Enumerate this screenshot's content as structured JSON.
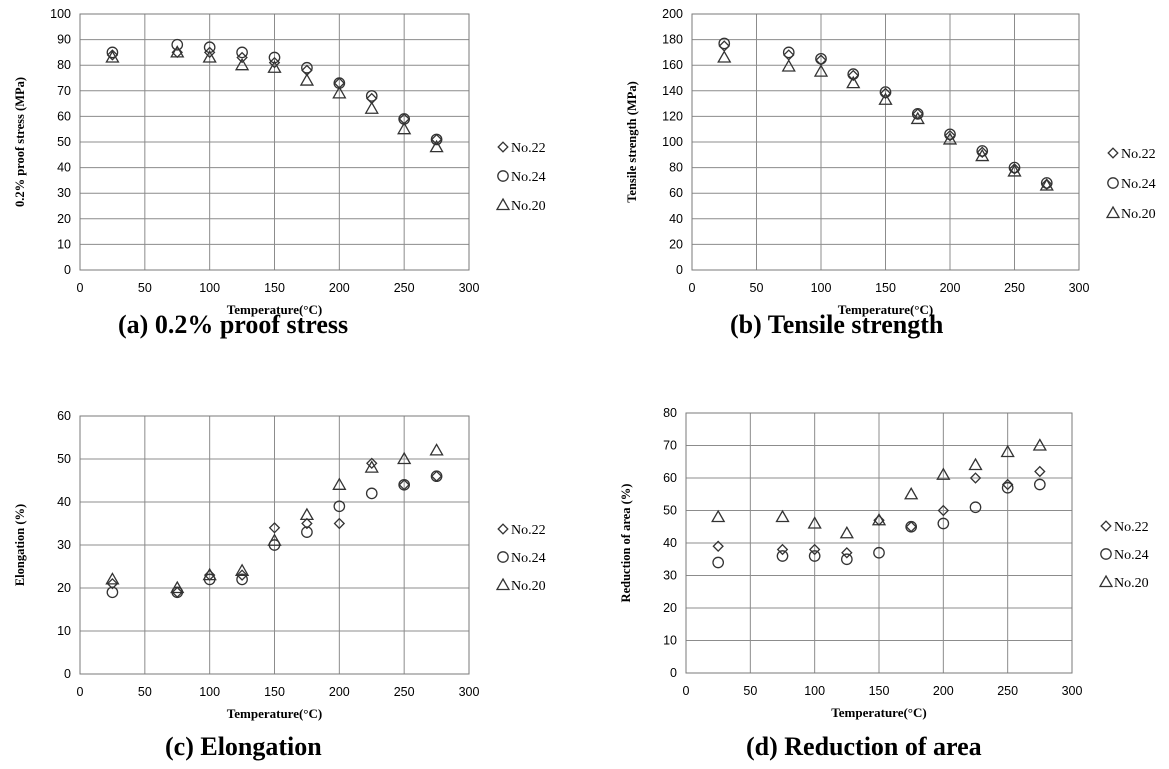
{
  "figure": {
    "captions": [
      "(a) 0.2% proof stress",
      "(b) Tensile strength",
      "(c) Elongation",
      "(d) Reduction of area"
    ]
  },
  "chart_data": [
    {
      "type": "scatter",
      "title": "",
      "xlabel": "Temperature(°C)",
      "ylabel": "0.2% proof stress  (MPa)",
      "xlim": [
        0,
        300
      ],
      "ylim": [
        0,
        100
      ],
      "xticks": [
        0,
        50,
        100,
        150,
        200,
        250,
        300
      ],
      "yticks": [
        0,
        10,
        20,
        30,
        40,
        50,
        60,
        70,
        80,
        90,
        100
      ],
      "grid": true,
      "legend_position": "right",
      "x": [
        25,
        75,
        100,
        125,
        150,
        175,
        200,
        225,
        250,
        275
      ],
      "series": [
        {
          "name": "No.22",
          "marker": "diamond",
          "values": [
            84,
            85,
            85,
            83,
            81,
            78,
            73,
            67,
            59,
            51
          ]
        },
        {
          "name": "No.24",
          "marker": "circle",
          "values": [
            85,
            88,
            87,
            85,
            83,
            79,
            73,
            68,
            59,
            51
          ]
        },
        {
          "name": "No.20",
          "marker": "triangle",
          "values": [
            83,
            85,
            83,
            80,
            79,
            74,
            69,
            63,
            55,
            48
          ]
        }
      ]
    },
    {
      "type": "scatter",
      "title": "",
      "xlabel": "Temperature(°C)",
      "ylabel": "Tensile strength (MPa)",
      "xlim": [
        0,
        300
      ],
      "ylim": [
        0,
        200
      ],
      "xticks": [
        0,
        50,
        100,
        150,
        200,
        250,
        300
      ],
      "yticks": [
        0,
        20,
        40,
        60,
        80,
        100,
        120,
        140,
        160,
        180,
        200
      ],
      "grid": true,
      "legend_position": "right",
      "x": [
        25,
        75,
        100,
        125,
        150,
        175,
        200,
        225,
        250,
        275
      ],
      "series": [
        {
          "name": "No.22",
          "marker": "diamond",
          "values": [
            175,
            168,
            164,
            152,
            138,
            122,
            105,
            92,
            79,
            67
          ]
        },
        {
          "name": "No.24",
          "marker": "circle",
          "values": [
            177,
            170,
            165,
            153,
            139,
            122,
            106,
            93,
            80,
            68
          ]
        },
        {
          "name": "No.20",
          "marker": "triangle",
          "values": [
            166,
            159,
            155,
            146,
            133,
            118,
            102,
            89,
            77,
            66
          ]
        }
      ]
    },
    {
      "type": "scatter",
      "title": "",
      "xlabel": "Temperature(°C)",
      "ylabel": "Elongation (%)",
      "xlim": [
        0,
        300
      ],
      "ylim": [
        0,
        60
      ],
      "xticks": [
        0,
        50,
        100,
        150,
        200,
        250,
        300
      ],
      "yticks": [
        0,
        10,
        20,
        30,
        40,
        50,
        60
      ],
      "grid": true,
      "legend_position": "right",
      "x": [
        25,
        75,
        100,
        125,
        150,
        175,
        200,
        225,
        250,
        275
      ],
      "series": [
        {
          "name": "No.22",
          "marker": "diamond",
          "values": [
            21,
            19,
            23,
            23,
            34,
            35,
            35,
            49,
            44,
            46
          ]
        },
        {
          "name": "No.24",
          "marker": "circle",
          "values": [
            19,
            19,
            22,
            22,
            30,
            33,
            39,
            42,
            44,
            46
          ]
        },
        {
          "name": "No.20",
          "marker": "triangle",
          "values": [
            22,
            20,
            23,
            24,
            31,
            37,
            44,
            48,
            50,
            52
          ]
        }
      ]
    },
    {
      "type": "scatter",
      "title": "",
      "xlabel": "Temperature(°C)",
      "ylabel": "Reduction of area (%)",
      "xlim": [
        0,
        300
      ],
      "ylim": [
        0,
        80
      ],
      "xticks": [
        0,
        50,
        100,
        150,
        200,
        250,
        300
      ],
      "yticks": [
        0,
        10,
        20,
        30,
        40,
        50,
        60,
        70,
        80
      ],
      "grid": true,
      "legend_position": "right",
      "x": [
        25,
        75,
        100,
        125,
        150,
        175,
        200,
        225,
        250,
        275
      ],
      "series": [
        {
          "name": "No.22",
          "marker": "diamond",
          "values": [
            39,
            38,
            38,
            37,
            47,
            45,
            50,
            60,
            58,
            62
          ]
        },
        {
          "name": "No.24",
          "marker": "circle",
          "values": [
            34,
            36,
            36,
            35,
            37,
            45,
            46,
            51,
            57,
            58
          ]
        },
        {
          "name": "No.20",
          "marker": "triangle",
          "values": [
            48,
            48,
            46,
            43,
            47,
            55,
            61,
            64,
            68,
            70
          ]
        }
      ]
    }
  ]
}
